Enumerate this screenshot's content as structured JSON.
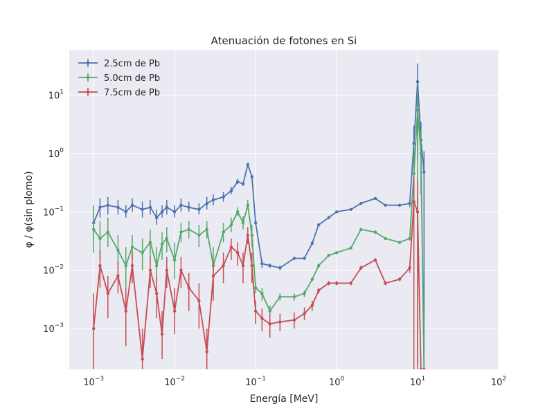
{
  "chart_data": {
    "type": "line",
    "title": "Atenuación de fotones en Si",
    "xlabel": "Energía [MeV]",
    "ylabel": "φ / φ(sin plomo)",
    "x_scale": "log",
    "y_scale": "log",
    "xlim": [
      0.0005,
      100
    ],
    "ylim": [
      0.0002,
      60
    ],
    "x_ticks": [
      {
        "value": 0.001,
        "base": "10",
        "exp": "−3"
      },
      {
        "value": 0.01,
        "base": "10",
        "exp": "−2"
      },
      {
        "value": 0.1,
        "base": "10",
        "exp": "−1"
      },
      {
        "value": 1,
        "base": "10",
        "exp": "0"
      },
      {
        "value": 10,
        "base": "10",
        "exp": "1"
      },
      {
        "value": 100,
        "base": "10",
        "exp": "2"
      }
    ],
    "y_ticks": [
      {
        "value": 0.001,
        "base": "10",
        "exp": "−3"
      },
      {
        "value": 0.01,
        "base": "10",
        "exp": "−2"
      },
      {
        "value": 0.1,
        "base": "10",
        "exp": "−1"
      },
      {
        "value": 1,
        "base": "10",
        "exp": "0"
      },
      {
        "value": 10,
        "base": "10",
        "exp": "1"
      }
    ],
    "grid": true,
    "legend_position": "top-left",
    "series": [
      {
        "name": "2.5cm de Pb",
        "color": "#4c72b0",
        "x": [
          0.001,
          0.0012,
          0.0015,
          0.002,
          0.0025,
          0.003,
          0.004,
          0.005,
          0.006,
          0.007,
          0.008,
          0.01,
          0.012,
          0.015,
          0.02,
          0.025,
          0.03,
          0.04,
          0.05,
          0.06,
          0.07,
          0.08,
          0.09,
          0.1,
          0.12,
          0.15,
          0.2,
          0.3,
          0.4,
          0.5,
          0.6,
          0.8,
          1,
          1.5,
          2,
          3,
          4,
          6,
          8,
          9,
          10,
          11,
          12
        ],
        "y": [
          0.065,
          0.12,
          0.13,
          0.12,
          0.1,
          0.13,
          0.11,
          0.12,
          0.08,
          0.1,
          0.12,
          0.1,
          0.13,
          0.12,
          0.11,
          0.14,
          0.16,
          0.18,
          0.23,
          0.33,
          0.3,
          0.65,
          0.4,
          0.065,
          0.013,
          0.012,
          0.011,
          0.016,
          0.016,
          0.029,
          0.06,
          0.08,
          0.1,
          0.11,
          0.14,
          0.17,
          0.13,
          0.13,
          0.14,
          1.5,
          17,
          1.7,
          0.48
        ],
        "err_low": [
          0.035,
          0.08,
          0.09,
          0.09,
          0.08,
          0.1,
          0.08,
          0.09,
          0.06,
          0.08,
          0.09,
          0.08,
          0.1,
          0.1,
          0.09,
          0.11,
          0.13,
          0.15,
          0.2,
          0.3,
          0.28,
          0.62,
          0.38,
          0.06,
          0.011,
          0.011,
          0.01,
          0.015,
          0.015,
          0.027,
          0.057,
          0.076,
          0.097,
          0.105,
          0.135,
          0.165,
          0.125,
          0.125,
          0.12,
          0.8,
          0.8,
          0.8,
          0.00025
        ],
        "err_high": [
          0.12,
          0.17,
          0.18,
          0.16,
          0.13,
          0.17,
          0.15,
          0.16,
          0.11,
          0.13,
          0.16,
          0.13,
          0.17,
          0.15,
          0.14,
          0.18,
          0.2,
          0.22,
          0.27,
          0.37,
          0.33,
          0.69,
          0.43,
          0.07,
          0.015,
          0.013,
          0.012,
          0.017,
          0.017,
          0.031,
          0.063,
          0.084,
          0.103,
          0.115,
          0.145,
          0.175,
          0.135,
          0.135,
          0.16,
          3.0,
          35,
          3.5,
          1.1
        ]
      },
      {
        "name": "5.0cm de Pb",
        "color": "#55a868",
        "x": [
          0.001,
          0.0012,
          0.0015,
          0.002,
          0.0025,
          0.003,
          0.004,
          0.005,
          0.006,
          0.007,
          0.008,
          0.01,
          0.012,
          0.015,
          0.02,
          0.025,
          0.03,
          0.04,
          0.05,
          0.06,
          0.07,
          0.08,
          0.09,
          0.1,
          0.12,
          0.15,
          0.2,
          0.3,
          0.4,
          0.5,
          0.6,
          0.8,
          1,
          1.5,
          2,
          3,
          4,
          6,
          8,
          9,
          10,
          11,
          12
        ],
        "y": [
          0.05,
          0.035,
          0.045,
          0.022,
          0.012,
          0.025,
          0.02,
          0.03,
          0.012,
          0.028,
          0.035,
          0.015,
          0.045,
          0.05,
          0.04,
          0.05,
          0.012,
          0.045,
          0.06,
          0.1,
          0.065,
          0.13,
          0.04,
          0.005,
          0.004,
          0.002,
          0.0035,
          0.0035,
          0.004,
          0.007,
          0.012,
          0.018,
          0.02,
          0.024,
          0.05,
          0.045,
          0.035,
          0.03,
          0.035,
          0.45,
          5.5,
          1.0,
          0.0002
        ],
        "err_low": [
          0.02,
          0.015,
          0.025,
          0.012,
          0.004,
          0.015,
          0.01,
          0.015,
          0.005,
          0.015,
          0.02,
          0.007,
          0.03,
          0.035,
          0.025,
          0.035,
          0.004,
          0.03,
          0.045,
          0.085,
          0.05,
          0.11,
          0.025,
          0.004,
          0.003,
          0.0015,
          0.003,
          0.003,
          0.0035,
          0.0065,
          0.011,
          0.017,
          0.019,
          0.023,
          0.047,
          0.042,
          0.033,
          0.028,
          0.032,
          0.1,
          0.00025,
          0.2,
          0.0002
        ],
        "err_high": [
          0.13,
          0.07,
          0.08,
          0.04,
          0.025,
          0.04,
          0.035,
          0.05,
          0.025,
          0.045,
          0.055,
          0.03,
          0.065,
          0.07,
          0.06,
          0.07,
          0.025,
          0.065,
          0.08,
          0.12,
          0.085,
          0.16,
          0.06,
          0.006,
          0.005,
          0.0025,
          0.004,
          0.004,
          0.0045,
          0.0075,
          0.013,
          0.019,
          0.021,
          0.025,
          0.053,
          0.048,
          0.037,
          0.032,
          0.038,
          1.0,
          12,
          2.5,
          0.0002
        ]
      },
      {
        "name": "7.5cm de Pb",
        "color": "#c44e52",
        "x": [
          0.001,
          0.0012,
          0.0015,
          0.002,
          0.0025,
          0.003,
          0.004,
          0.005,
          0.006,
          0.007,
          0.008,
          0.01,
          0.012,
          0.015,
          0.02,
          0.025,
          0.03,
          0.04,
          0.05,
          0.06,
          0.07,
          0.08,
          0.09,
          0.1,
          0.12,
          0.15,
          0.2,
          0.3,
          0.4,
          0.5,
          0.6,
          0.8,
          1,
          1.5,
          2,
          3,
          4,
          6,
          8,
          9,
          10,
          11,
          12
        ],
        "y": [
          0.001,
          0.012,
          0.004,
          0.008,
          0.002,
          0.012,
          0.0003,
          0.01,
          0.004,
          0.0008,
          0.01,
          0.002,
          0.01,
          0.005,
          0.003,
          0.0004,
          0.008,
          0.012,
          0.025,
          0.02,
          0.012,
          0.04,
          0.012,
          0.002,
          0.0015,
          0.0012,
          0.0013,
          0.0014,
          0.0018,
          0.0025,
          0.0045,
          0.006,
          0.006,
          0.006,
          0.011,
          0.015,
          0.006,
          0.007,
          0.011,
          0.15,
          0.1,
          0.0002,
          0.0002
        ],
        "err_low": [
          0.0002,
          0.005,
          0.0015,
          0.004,
          0.0005,
          0.006,
          0.0001,
          0.005,
          0.0015,
          0.0003,
          0.005,
          0.0008,
          0.005,
          0.002,
          0.001,
          0.0001,
          0.003,
          0.006,
          0.015,
          0.012,
          0.006,
          0.028,
          0.006,
          0.0012,
          0.0009,
          0.0007,
          0.0009,
          0.001,
          0.0014,
          0.002,
          0.004,
          0.0055,
          0.0055,
          0.0055,
          0.01,
          0.014,
          0.0055,
          0.0065,
          0.009,
          0.0002,
          0.0002,
          0.0002,
          0.0002
        ],
        "err_high": [
          0.004,
          0.022,
          0.008,
          0.014,
          0.005,
          0.02,
          0.001,
          0.017,
          0.008,
          0.002,
          0.017,
          0.005,
          0.017,
          0.009,
          0.006,
          0.001,
          0.014,
          0.02,
          0.035,
          0.03,
          0.02,
          0.055,
          0.02,
          0.003,
          0.0022,
          0.0018,
          0.0018,
          0.0019,
          0.0023,
          0.003,
          0.005,
          0.0065,
          0.0065,
          0.0065,
          0.012,
          0.016,
          0.0065,
          0.0075,
          0.013,
          0.4,
          0.35,
          0.0002,
          0.0002
        ]
      }
    ]
  }
}
